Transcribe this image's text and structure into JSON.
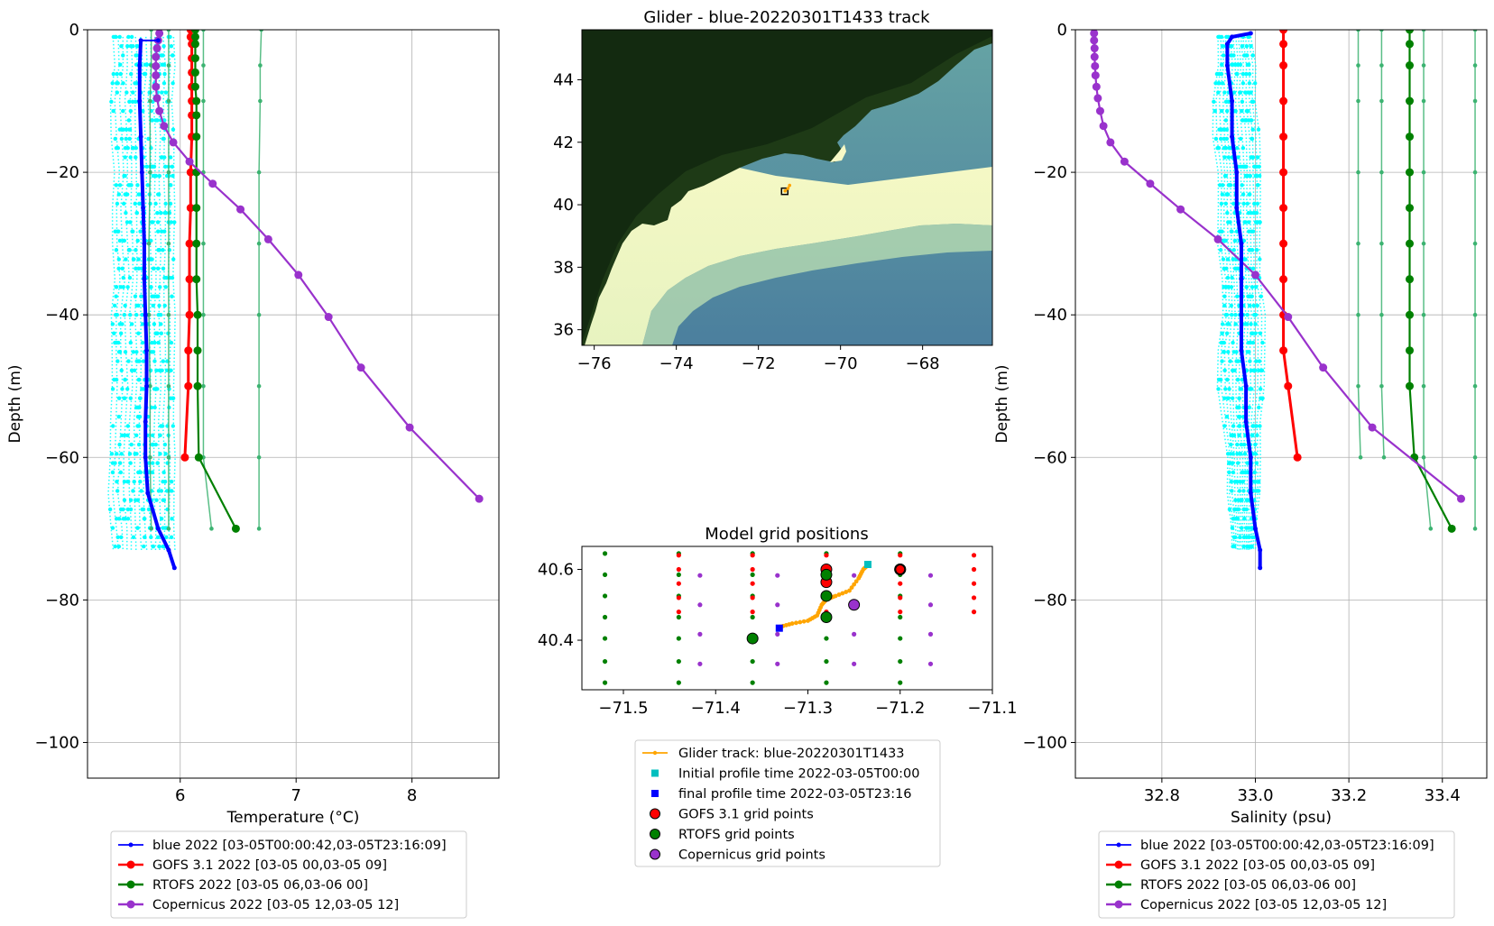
{
  "chart_data": [
    {
      "id": "temperature-profile",
      "type": "line",
      "xlabel": "Temperature (°C)",
      "ylabel": "Depth (m)",
      "xlim": [
        5.2,
        8.75
      ],
      "ylim": [
        -105,
        0
      ],
      "xticks": [
        6,
        7,
        8
      ],
      "yticks": [
        0,
        -20,
        -40,
        -60,
        -80,
        -100
      ],
      "grid": true,
      "legend": [
        {
          "label": "blue 2022 [03-05T00:00:42,03-05T23:16:09]",
          "color": "#0000ff"
        },
        {
          "label": "GOFS 3.1 2022 [03-05 00,03-05 09]",
          "color": "#ff0000"
        },
        {
          "label": "RTOFS 2022 [03-05 06,03-06 00]",
          "color": "#008000"
        },
        {
          "label": "Copernicus 2022 [03-05 12,03-05 12]",
          "color": "#9932cc"
        }
      ],
      "glider_mean": {
        "depth": [
          -1.5,
          -5,
          -10,
          -15,
          -20,
          -25,
          -30,
          -35,
          -40,
          -45,
          -50,
          -55,
          -60,
          -65,
          -70,
          -73,
          -75.5
        ],
        "values": [
          5.66,
          5.65,
          5.65,
          5.66,
          5.67,
          5.68,
          5.69,
          5.69,
          5.7,
          5.71,
          5.71,
          5.7,
          5.7,
          5.72,
          5.81,
          5.9,
          5.95
        ]
      },
      "glider_surface_point": {
        "depth": -1.5,
        "value": 5.81
      },
      "glider_profiles_band": {
        "left": [
          5.42,
          5.43,
          5.4,
          5.41,
          5.43,
          5.41,
          5.42,
          5.44,
          5.4,
          5.41,
          5.42,
          5.4,
          5.39,
          5.38,
          5.41,
          5.42
        ],
        "right": [
          5.94,
          5.95,
          5.93,
          5.95,
          5.94,
          5.95,
          5.95,
          5.94,
          5.95,
          5.95,
          5.95,
          5.94,
          5.95,
          5.95,
          5.95,
          5.95
        ],
        "depth": [
          -1,
          -5,
          -10,
          -15,
          -20,
          -25,
          -30,
          -35,
          -40,
          -45,
          -50,
          -55,
          -60,
          -65,
          -70,
          -73
        ]
      },
      "series": [
        {
          "name": "GOFS 3.1 2022 [03-05 00,03-05 09]",
          "color": "#ff0000",
          "depth": [
            0,
            -1,
            -2,
            -4,
            -6,
            -8,
            -10,
            -12,
            -15,
            -20,
            -25,
            -30,
            -35,
            -40,
            -45,
            -50,
            -60
          ],
          "values": [
            6.09,
            6.09,
            6.1,
            6.1,
            6.1,
            6.1,
            6.1,
            6.1,
            6.1,
            6.09,
            6.09,
            6.08,
            6.08,
            6.08,
            6.07,
            6.07,
            6.04
          ]
        },
        {
          "name": "RTOFS 2022 [03-05 06,03-06 00]",
          "color": "#008000",
          "depth": [
            0,
            -1,
            -2,
            -4,
            -6,
            -8,
            -10,
            -12,
            -15,
            -20,
            -25,
            -30,
            -35,
            -40,
            -45,
            -50,
            -60,
            -70
          ],
          "values": [
            6.13,
            6.13,
            6.13,
            6.13,
            6.13,
            6.13,
            6.14,
            6.14,
            6.14,
            6.14,
            6.14,
            6.14,
            6.14,
            6.15,
            6.15,
            6.15,
            6.16,
            6.48
          ]
        },
        {
          "name": "Copernicus 2022 [03-05 12,03-05 12]",
          "color": "#9932cc",
          "depth": [
            -0.5,
            -1.5,
            -2.6,
            -3.8,
            -5.1,
            -6.4,
            -8,
            -9.6,
            -11.4,
            -13.5,
            -15.8,
            -18.5,
            -21.6,
            -25.2,
            -29.4,
            -34.4,
            -40.3,
            -47.4,
            -55.8,
            -65.8
          ],
          "values": [
            5.82,
            5.81,
            5.8,
            5.79,
            5.79,
            5.79,
            5.79,
            5.8,
            5.82,
            5.86,
            5.94,
            6.08,
            6.28,
            6.52,
            6.76,
            7.02,
            7.28,
            7.56,
            7.98,
            8.58
          ]
        }
      ],
      "rtofs_neighbors": [
        {
          "color": "#3cb371",
          "depth": [
            0,
            -5,
            -10,
            -20,
            -30,
            -40,
            -50,
            -60,
            -70
          ],
          "values": [
            5.9,
            5.9,
            5.9,
            5.9,
            5.9,
            5.9,
            5.9,
            5.9,
            5.9
          ]
        },
        {
          "color": "#3cb371",
          "depth": [
            0,
            -5,
            -10,
            -20,
            -30,
            -40,
            -50,
            -60,
            -70
          ],
          "values": [
            6.2,
            6.2,
            6.2,
            6.2,
            6.2,
            6.2,
            6.2,
            6.2,
            6.27
          ]
        },
        {
          "color": "#3cb371",
          "depth": [
            0,
            -5,
            -10,
            -20,
            -30,
            -40,
            -50,
            -60,
            -70
          ],
          "values": [
            6.7,
            6.69,
            6.69,
            6.68,
            6.68,
            6.68,
            6.68,
            6.68,
            6.68
          ]
        },
        {
          "color": "#3cb371",
          "depth": [
            0,
            -5,
            -10,
            -20,
            -30,
            -40,
            -50,
            -60,
            -70
          ],
          "values": [
            5.75,
            5.75,
            5.74,
            5.74,
            5.73,
            5.73,
            5.74,
            5.74,
            5.75
          ]
        }
      ]
    },
    {
      "id": "glider-track-map",
      "type": "heatmap",
      "title": "Glider - blue-20220301T1433 track",
      "xlim": [
        -76.3,
        -66.3
      ],
      "ylim": [
        35.5,
        45.6
      ],
      "xticks": [
        -76,
        -74,
        -72,
        -70,
        -68
      ],
      "yticks": [
        36,
        38,
        40,
        42,
        44
      ],
      "track": {
        "lon": [
          -71.35,
          -71.28,
          -71.24
        ],
        "lat": [
          40.44,
          40.52,
          40.62
        ]
      },
      "initial_position": {
        "lon": -71.36,
        "lat": 40.43
      }
    },
    {
      "id": "model-grid-positions",
      "type": "scatter",
      "title": "Model grid positions",
      "xlim": [
        -71.545,
        -71.1
      ],
      "ylim": [
        40.26,
        40.665
      ],
      "xticks": [
        -71.5,
        -71.4,
        -71.3,
        -71.2,
        -71.1
      ],
      "xticklabels": [
        "−71.5",
        "−71.4",
        "−71.3",
        "−71.2",
        "−71.1"
      ],
      "yticks": [
        40.4,
        40.6
      ],
      "legend": [
        {
          "label": "Glider track: blue-20220301T1433",
          "color": "#ffa500",
          "marker": "line"
        },
        {
          "label": "Initial profile time 2022-03-05T00:00",
          "color": "#00bfbf",
          "marker": "square"
        },
        {
          "label": "final profile time 2022-03-05T23:16",
          "color": "#0000ff",
          "marker": "square"
        },
        {
          "label": "GOFS 3.1 grid points",
          "color": "#ff0000",
          "marker": "circle"
        },
        {
          "label": "RTOFS grid points",
          "color": "#008000",
          "marker": "circle"
        },
        {
          "label": "Copernicus grid points",
          "color": "#9932cc",
          "marker": "circle"
        }
      ],
      "rtofs_grid": {
        "lon": [
          -71.52,
          -71.44,
          -71.36,
          -71.28,
          -71.2
        ],
        "lat": [
          40.28,
          40.34,
          40.405,
          40.465,
          40.525,
          40.585,
          40.645
        ]
      },
      "gofs_grid": {
        "lon": [
          -71.44,
          -71.36,
          -71.28,
          -71.2,
          -71.12
        ],
        "lat": [
          40.48,
          40.52,
          40.56,
          40.6,
          40.64
        ]
      },
      "copernicus_grid": {
        "lon": [
          -71.417,
          -71.333,
          -71.25,
          -71.167
        ],
        "lat": [
          40.333,
          40.417,
          40.5,
          40.583
        ]
      },
      "glider_track": {
        "lon": [
          -71.33,
          -71.317,
          -71.3,
          -71.29,
          -71.285,
          -71.28,
          -71.27,
          -71.255,
          -71.245,
          -71.24,
          -71.235
        ],
        "lat": [
          40.438,
          40.447,
          40.455,
          40.47,
          40.5,
          40.515,
          40.525,
          40.54,
          40.575,
          40.6,
          40.612
        ]
      },
      "initial_profile": {
        "lon": -71.235,
        "lat": 40.614
      },
      "final_profile": {
        "lon": -71.331,
        "lat": 40.434
      },
      "gofs_selected": [
        {
          "lon": -71.28,
          "lat": 40.6
        },
        {
          "lon": -71.28,
          "lat": 40.564
        },
        {
          "lon": -71.2,
          "lat": 40.6
        }
      ],
      "rtofs_selected": [
        {
          "lon": -71.36,
          "lat": 40.405
        },
        {
          "lon": -71.28,
          "lat": 40.465
        },
        {
          "lon": -71.28,
          "lat": 40.525
        },
        {
          "lon": -71.28,
          "lat": 40.585
        },
        {
          "lon": -71.2,
          "lat": 40.6
        }
      ],
      "copernicus_selected": [
        {
          "lon": -71.25,
          "lat": 40.5
        }
      ]
    },
    {
      "id": "salinity-profile",
      "type": "line",
      "xlabel": "Salinity (psu)",
      "ylabel": "Depth (m)",
      "xlim": [
        32.615,
        33.495
      ],
      "ylim": [
        -105,
        0
      ],
      "xticks": [
        32.8,
        33.0,
        33.2,
        33.4
      ],
      "xticklabels": [
        "32.8",
        "33.0",
        "33.2",
        "33.4"
      ],
      "yticks": [
        0,
        -20,
        -40,
        -60,
        -80,
        -100
      ],
      "grid": true,
      "legend": [
        {
          "label": "blue 2022 [03-05T00:00:42,03-05T23:16:09]",
          "color": "#0000ff"
        },
        {
          "label": "GOFS 3.1 2022 [03-05 00,03-05 09]",
          "color": "#ff0000"
        },
        {
          "label": "RTOFS 2022 [03-05 06,03-06 00]",
          "color": "#008000"
        },
        {
          "label": "Copernicus 2022 [03-05 12,03-05 12]",
          "color": "#9932cc"
        }
      ],
      "glider_mean": {
        "depth": [
          -0.5,
          -1,
          -2,
          -5,
          -10,
          -15,
          -20,
          -25,
          -30,
          -35,
          -40,
          -45,
          -50,
          -55,
          -60,
          -65,
          -70,
          -73,
          -75.5
        ],
        "values": [
          32.99,
          32.95,
          32.94,
          32.94,
          32.95,
          32.95,
          32.96,
          32.96,
          32.97,
          32.97,
          32.97,
          32.97,
          32.98,
          32.98,
          32.99,
          32.99,
          33.0,
          33.01,
          33.01
        ]
      },
      "glider_profiles_band": {
        "left": [
          32.92,
          32.92,
          32.91,
          32.91,
          32.92,
          32.92,
          32.92,
          32.93,
          32.93,
          32.92,
          32.92,
          32.93,
          32.94,
          32.94,
          32.95,
          32.95
        ],
        "right": [
          32.99,
          33.0,
          33.0,
          33.01,
          33.01,
          33.01,
          33.01,
          33.01,
          33.02,
          33.02,
          33.02,
          33.01,
          33.01,
          33.01,
          33.0,
          33.0
        ],
        "depth": [
          -1,
          -5,
          -10,
          -15,
          -20,
          -25,
          -30,
          -35,
          -40,
          -45,
          -50,
          -55,
          -60,
          -65,
          -70,
          -73
        ]
      },
      "series": [
        {
          "name": "GOFS 3.1 2022 [03-05 00,03-05 09]",
          "color": "#ff0000",
          "depth": [
            0,
            -2,
            -5,
            -10,
            -15,
            -20,
            -25,
            -30,
            -35,
            -40,
            -45,
            -50,
            -60
          ],
          "values": [
            33.06,
            33.06,
            33.06,
            33.06,
            33.06,
            33.06,
            33.06,
            33.06,
            33.06,
            33.06,
            33.06,
            33.07,
            33.09
          ]
        },
        {
          "name": "RTOFS 2022 [03-05 06,03-06 00]",
          "color": "#008000",
          "depth": [
            0,
            -2,
            -5,
            -10,
            -15,
            -20,
            -25,
            -30,
            -35,
            -40,
            -45,
            -50,
            -60,
            -70
          ],
          "values": [
            33.33,
            33.33,
            33.33,
            33.33,
            33.33,
            33.33,
            33.33,
            33.33,
            33.33,
            33.33,
            33.33,
            33.33,
            33.34,
            33.42
          ]
        },
        {
          "name": "Copernicus 2022 [03-05 12,03-05 12]",
          "color": "#9932cc",
          "depth": [
            -0.5,
            -1.5,
            -2.6,
            -3.8,
            -5.1,
            -6.4,
            -8,
            -9.6,
            -11.4,
            -13.5,
            -15.8,
            -18.5,
            -21.6,
            -25.2,
            -29.4,
            -34.4,
            -40.3,
            -47.4,
            -55.8,
            -65.8
          ],
          "values": [
            32.655,
            32.655,
            32.656,
            32.656,
            32.657,
            32.658,
            32.66,
            32.663,
            32.668,
            32.675,
            32.69,
            32.72,
            32.775,
            32.84,
            32.92,
            33.0,
            33.07,
            33.145,
            33.25,
            33.44
          ]
        }
      ],
      "rtofs_neighbors": [
        {
          "color": "#3cb371",
          "depth": [
            0,
            -5,
            -10,
            -20,
            -30,
            -40,
            -50,
            -60
          ],
          "values": [
            33.22,
            33.22,
            33.22,
            33.22,
            33.22,
            33.22,
            33.22,
            33.225
          ]
        },
        {
          "color": "#3cb371",
          "depth": [
            0,
            -5,
            -10,
            -20,
            -30,
            -40,
            -50,
            -60
          ],
          "values": [
            33.27,
            33.27,
            33.27,
            33.27,
            33.27,
            33.27,
            33.27,
            33.275
          ]
        },
        {
          "color": "#3cb371",
          "depth": [
            0,
            -5,
            -10,
            -20,
            -30,
            -40,
            -50,
            -60,
            -70
          ],
          "values": [
            33.36,
            33.36,
            33.36,
            33.36,
            33.36,
            33.36,
            33.36,
            33.36,
            33.375
          ]
        },
        {
          "color": "#3cb371",
          "depth": [
            0,
            -5,
            -10,
            -20,
            -30,
            -40,
            -50,
            -60,
            -70
          ],
          "values": [
            33.47,
            33.47,
            33.47,
            33.47,
            33.47,
            33.47,
            33.47,
            33.47,
            33.47
          ]
        }
      ]
    }
  ]
}
